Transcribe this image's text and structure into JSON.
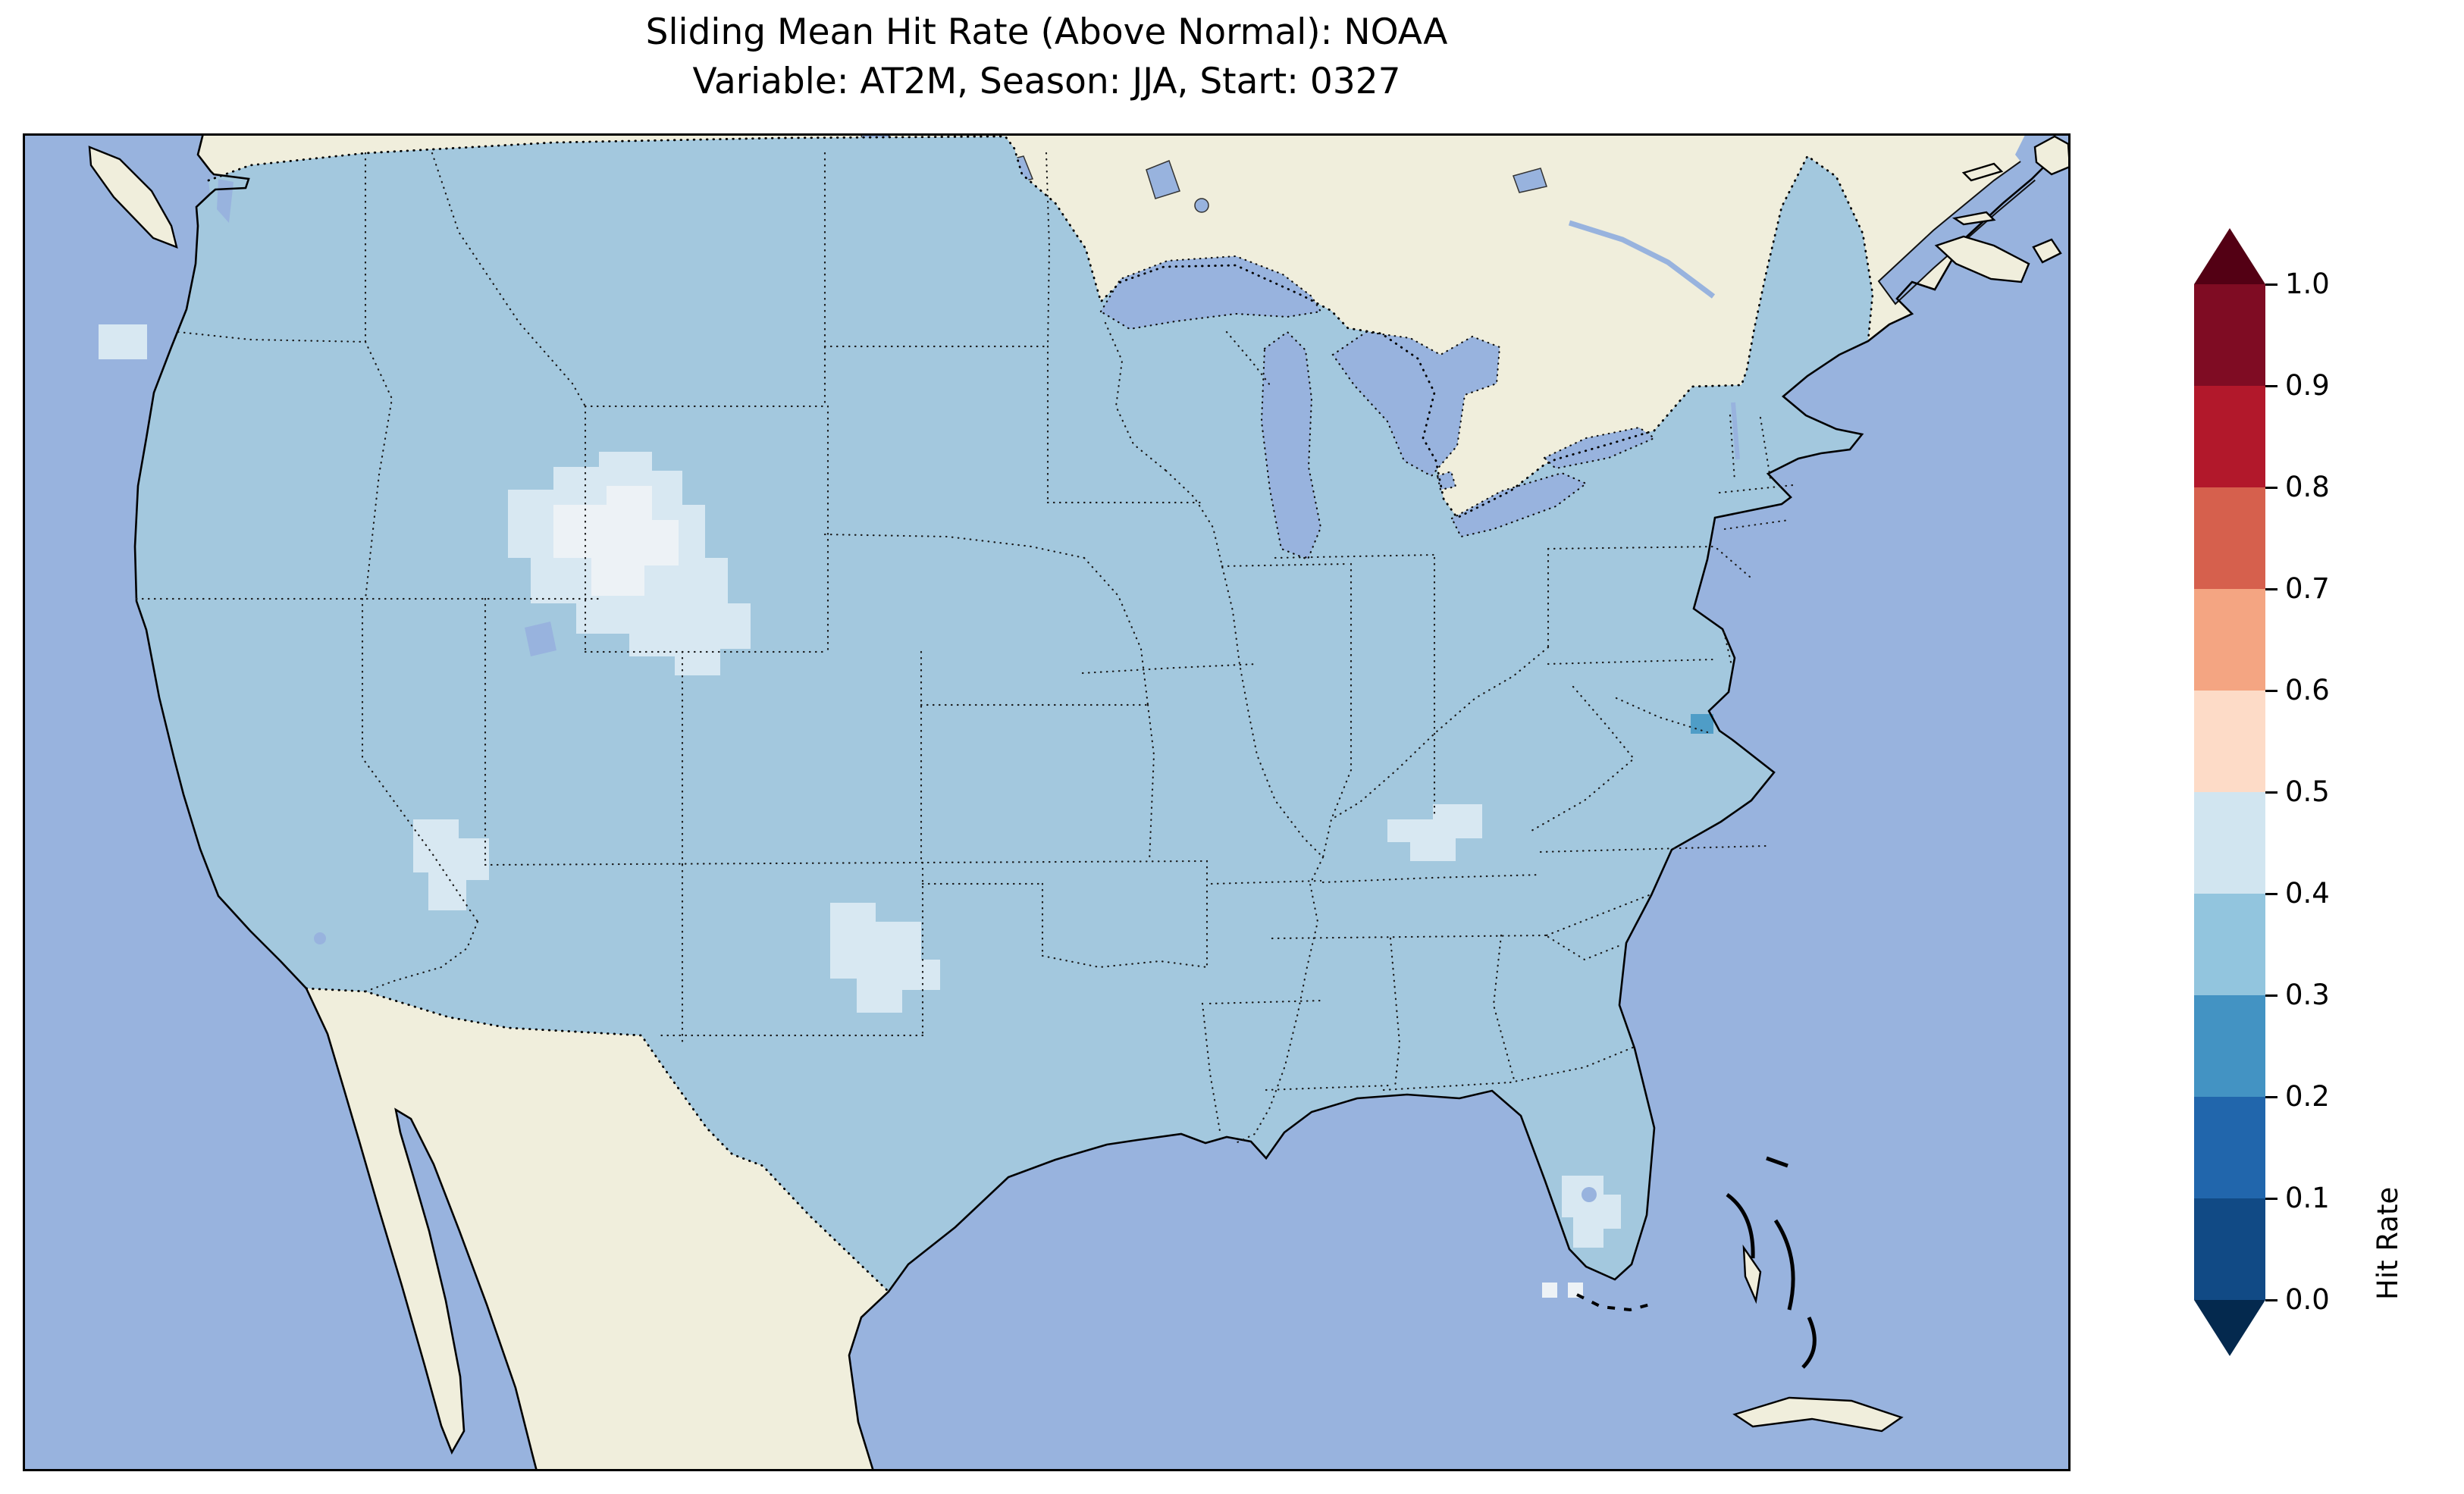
{
  "figure": {
    "title_line1": "Sliding Mean Hit Rate (Above Normal): NOAA",
    "title_line2": "Variable: AT2M, Season: JJA, Start: 0327"
  },
  "colorbar": {
    "label": "Hit Rate",
    "tick_labels": [
      "0.0",
      "0.1",
      "0.2",
      "0.3",
      "0.4",
      "0.5",
      "0.6",
      "0.7",
      "0.8",
      "0.9",
      "1.0"
    ],
    "ticks": [
      0.0,
      0.1,
      0.2,
      0.3,
      0.4,
      0.5,
      0.6,
      0.7,
      0.8,
      0.9,
      1.0
    ],
    "bin_colors": [
      "#114a85",
      "#2166ac",
      "#4393c3",
      "#92c5de",
      "#d1e5f0",
      "#fddbc7",
      "#f4a582",
      "#d6604d",
      "#b2182b",
      "#7f0c23"
    ],
    "under_color": "#04294e",
    "over_color": "#530014",
    "extend": "both"
  },
  "map_colors": {
    "ocean": "#98b3de",
    "land": "#f0eedc",
    "us_fill": "#a3c8de",
    "pat": "#d8e8f2",
    "patch_lighter": "#edf2f6",
    "spot_teal": "#4f9dc7"
  },
  "chart_data": {
    "type": "heatmap",
    "title": "Sliding Mean Hit Rate (Above Normal): NOAA",
    "subtitle": "Variable: AT2M, Season: JJA, Start: 0327",
    "metric": "Sliding Mean Hit Rate (Above Normal)",
    "source": "NOAA",
    "variable": "AT2M",
    "season": "JJA",
    "start": "0327",
    "region": "Contiguous United States (map with state and national boundaries)",
    "colorbar": {
      "label": "Hit Rate",
      "ticks": [
        0.0,
        0.1,
        0.2,
        0.3,
        0.4,
        0.5,
        0.6,
        0.7,
        0.8,
        0.9,
        1.0
      ],
      "range": [
        0.0,
        1.0
      ],
      "extend": "both",
      "colormap": "RdBu_r, 10 discrete bins (dark blue low to dark red high)"
    },
    "values_summary": {
      "dominant_bin": [
        0.3,
        0.4
      ],
      "typical_value": 0.35,
      "description": "Nearly the entire CONUS is in the 0.3-0.4 hit-rate bin (light blue).",
      "lighter_regions_bin_0.4_0.5": [
        {
          "area": "Utah / western Colorado",
          "hit_rate": 0.45
        },
        {
          "area": "Arizona-Nevada border area",
          "hit_rate": 0.45
        },
        {
          "area": "West Texas / eastern New Mexico",
          "hit_rate": 0.45
        },
        {
          "area": "Kentucky-Tennessee area",
          "hit_rate": 0.45
        },
        {
          "area": "South Florida",
          "hit_rate": 0.45
        },
        {
          "area": "Washington coast",
          "hit_rate": 0.45
        }
      ],
      "darker_regions": [
        {
          "area": "Virginia coast near Chesapeake Bay mouth",
          "hit_rate": 0.25
        }
      ]
    }
  }
}
